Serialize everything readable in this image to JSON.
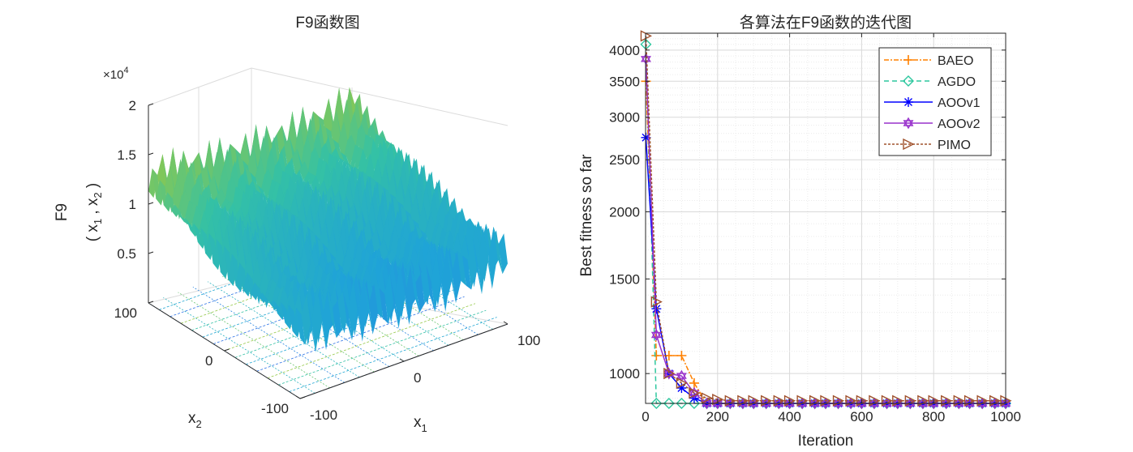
{
  "chart_data": [
    {
      "type": "surface3d",
      "title": "F9函数图",
      "xlabel": "x",
      "xlabel_sub": "1",
      "ylabel": "x",
      "ylabel_sub": "2",
      "zlabel_main": "F9",
      "zlabel_args": [
        "( x",
        "1",
        " , x",
        "2",
        " )"
      ],
      "z_exponent_label": "×10",
      "z_exponent_power": "4",
      "xlim": [
        -100,
        100
      ],
      "ylim": [
        -100,
        100
      ],
      "zlim": [
        0,
        20000
      ],
      "x_ticks": [
        "-100",
        "0",
        "100"
      ],
      "y_ticks": [
        "-100",
        "0",
        "100"
      ],
      "z_ticks": [
        "0.5",
        "1",
        "1.5",
        "2"
      ],
      "z_tick_values": [
        5000,
        10000,
        15000,
        20000
      ],
      "colormap": [
        "#3e26a8",
        "#2f66e8",
        "#1fa3d8",
        "#34c1a5",
        "#9fc93c",
        "#f0c12a",
        "#f9fb15"
      ],
      "contour_projection": true
    },
    {
      "type": "line",
      "title": "各算法在F9函数的迭代图",
      "xlabel": "Iteration",
      "ylabel": "Best fitness so far",
      "xlim": [
        0,
        1000
      ],
      "ylim": [
        880,
        4300
      ],
      "yscale": "log",
      "x_ticks": [
        "0",
        "200",
        "400",
        "600",
        "800",
        "1000"
      ],
      "x_tick_values": [
        0,
        200,
        400,
        600,
        800,
        1000
      ],
      "y_ticks": [
        "1000",
        "1500",
        "2000",
        "2500",
        "3000",
        "3500",
        "4000"
      ],
      "y_tick_values": [
        1000,
        1500,
        2000,
        2500,
        3000,
        3500,
        4000
      ],
      "grid": true,
      "legend_position": "top-right",
      "x": [
        1,
        30,
        65,
        100,
        135,
        170,
        200,
        235,
        270,
        300,
        335,
        370,
        400,
        435,
        470,
        500,
        535,
        570,
        600,
        635,
        670,
        700,
        735,
        770,
        800,
        835,
        870,
        900,
        935,
        970,
        1000
      ],
      "series": [
        {
          "name": "BAEO",
          "color": "#ff8000",
          "dash": "6 2 2 2",
          "marker": "plus",
          "values": [
            3500,
            1080,
            1080,
            1080,
            960,
            880,
            880,
            880,
            880,
            880,
            880,
            880,
            880,
            880,
            880,
            880,
            880,
            880,
            880,
            880,
            880,
            880,
            880,
            880,
            880,
            880,
            880,
            880,
            880,
            880,
            880
          ]
        },
        {
          "name": "AGDO",
          "color": "#2dc79e",
          "dash": "6 4",
          "marker": "diamond",
          "values": [
            4100,
            880,
            880,
            880,
            880,
            880,
            880,
            880,
            880,
            880,
            880,
            880,
            880,
            880,
            880,
            880,
            880,
            880,
            880,
            880,
            880,
            880,
            880,
            880,
            880,
            880,
            880,
            880,
            880,
            880,
            880
          ]
        },
        {
          "name": "AOOv1",
          "color": "#0000ff",
          "dash": "",
          "marker": "asterisk",
          "values": [
            2750,
            1320,
            1000,
            940,
            900,
            880,
            880,
            880,
            880,
            880,
            880,
            880,
            880,
            880,
            880,
            880,
            880,
            880,
            880,
            880,
            880,
            880,
            880,
            880,
            880,
            880,
            880,
            880,
            880,
            880,
            880
          ]
        },
        {
          "name": "AOOv2",
          "color": "#9932cc",
          "dash": "",
          "marker": "hexagram",
          "values": [
            3850,
            1180,
            1000,
            990,
            920,
            880,
            880,
            880,
            880,
            880,
            880,
            880,
            880,
            880,
            880,
            880,
            880,
            880,
            880,
            880,
            880,
            880,
            880,
            880,
            880,
            880,
            880,
            880,
            880,
            880,
            880
          ]
        },
        {
          "name": "PIMO",
          "color": "#a0522d",
          "dash": "3 2",
          "marker": "triangle-right",
          "values": [
            4250,
            1360,
            1000,
            960,
            920,
            900,
            895,
            890,
            890,
            890,
            890,
            890,
            890,
            890,
            890,
            890,
            890,
            890,
            890,
            890,
            890,
            890,
            890,
            890,
            890,
            890,
            890,
            890,
            890,
            890,
            890
          ]
        }
      ]
    }
  ]
}
